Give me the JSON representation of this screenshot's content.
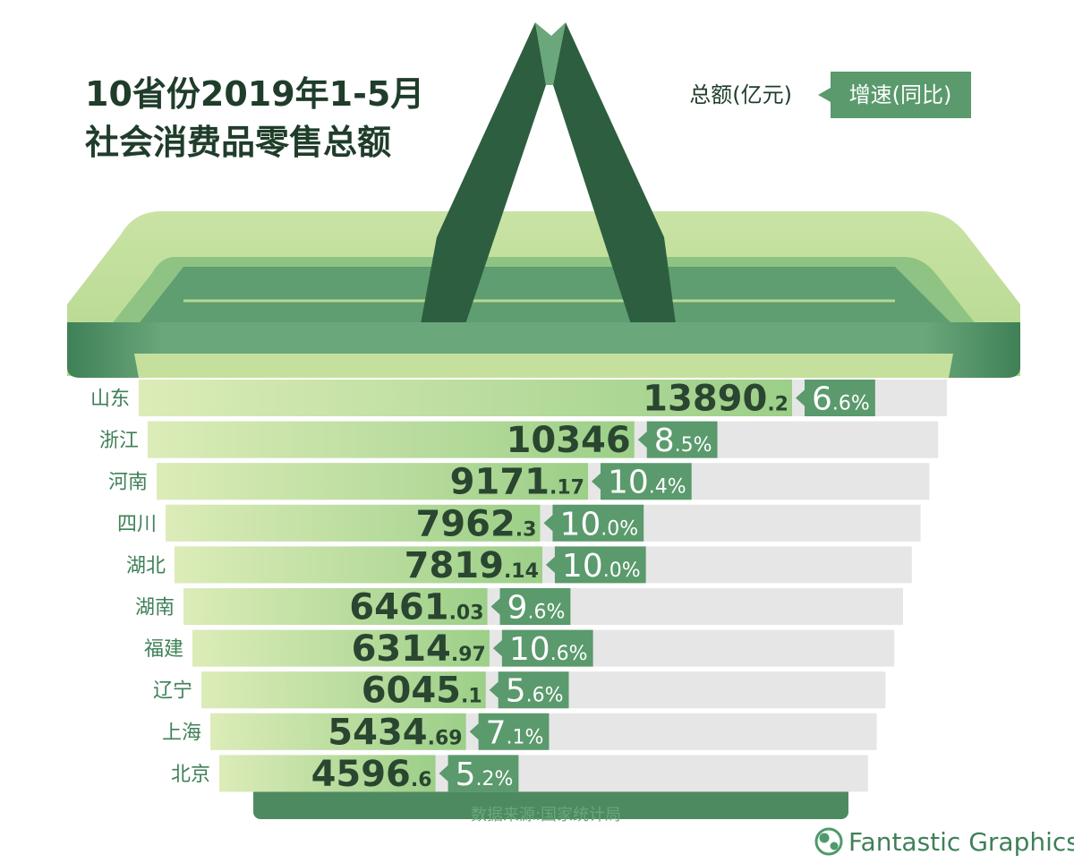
{
  "chart_data": {
    "type": "bar",
    "title": [
      "10省份2019年1-5月",
      "社会消费品零售总额"
    ],
    "categories": [
      "山东",
      "浙江",
      "河南",
      "四川",
      "湖北",
      "湖南",
      "福建",
      "辽宁",
      "上海",
      "北京"
    ],
    "series": [
      {
        "name": "总额(亿元)",
        "color": "#a6d18c",
        "values": [
          13890.2,
          10346,
          9171.17,
          7962.3,
          7819.14,
          6461.03,
          6314.97,
          6045.1,
          5434.69,
          4596.6
        ]
      },
      {
        "name": "增速(同比)",
        "color": "#5a9a6c",
        "values": [
          6.6,
          8.5,
          10.4,
          10.0,
          10.0,
          9.6,
          10.6,
          5.6,
          7.1,
          5.2
        ],
        "value_labels": [
          "6.6%",
          "8.5%",
          "10.4%",
          "10.0%",
          "10.0%",
          "9.6%",
          "10.6%",
          "5.6%",
          "7.1%",
          "5.2%"
        ]
      }
    ],
    "source": "数据来源:国家统计局",
    "brand": "Fantastic Graphics"
  }
}
